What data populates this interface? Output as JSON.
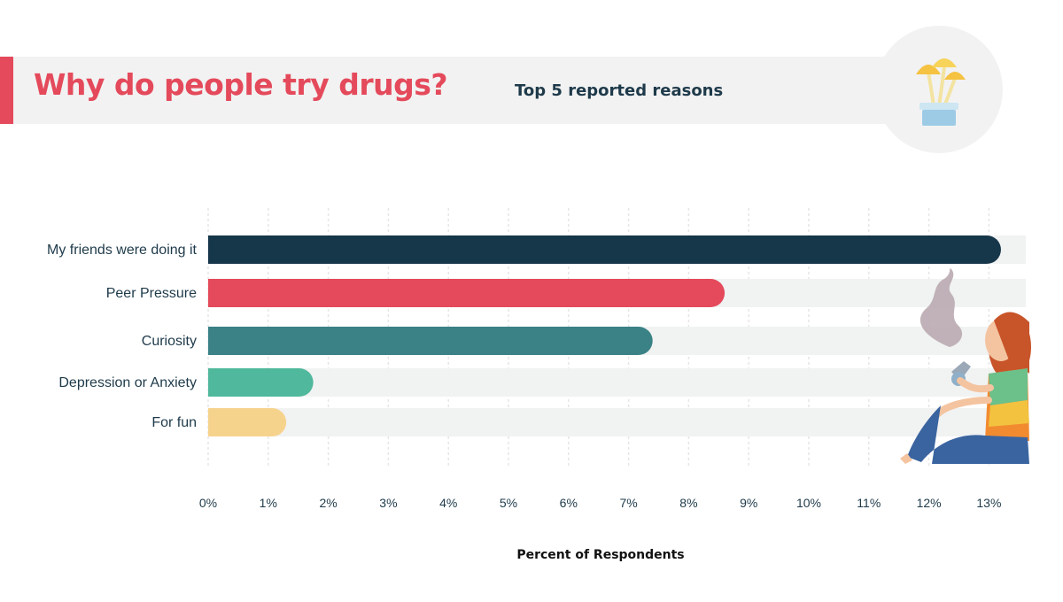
{
  "title": "Why do people try drugs?",
  "subtitle": "Top 5 reported reasons",
  "icons": {
    "header_icon": "mushroom-pot-icon",
    "illustration": "smoking-person-illustration"
  },
  "colors": {
    "accent": "#e44a5b",
    "title": "#e44a5b",
    "subtitle": "#1e3a4a",
    "track": "#f1f2f2",
    "grid": "#e6e6e6"
  },
  "chart_data": {
    "type": "bar",
    "orientation": "horizontal",
    "categories": [
      "My friends were doing it",
      "Peer Pressure",
      "Curiosity",
      "Depression or Anxiety",
      "For fun"
    ],
    "values": [
      13.2,
      8.6,
      7.4,
      1.75,
      1.3
    ],
    "bar_colors": [
      "#16364a",
      "#e44a5b",
      "#3a8285",
      "#50b89c",
      "#f6d38d"
    ],
    "xlabel": "Percent of Respondents",
    "ylabel": "",
    "xlim": [
      0,
      13
    ],
    "ticks": [
      "0%",
      "1%",
      "2%",
      "3%",
      "4%",
      "5%",
      "6%",
      "7%",
      "8%",
      "9%",
      "10%",
      "11%",
      "12%",
      "13%"
    ],
    "grid": "vertical"
  }
}
